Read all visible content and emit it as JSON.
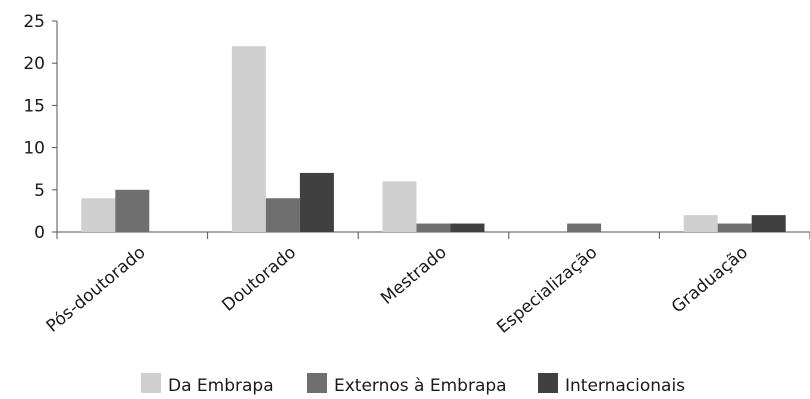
{
  "chart_data": {
    "type": "bar",
    "title": "",
    "xlabel": "",
    "ylabel": "",
    "ylim": [
      0,
      25
    ],
    "yticks": [
      0,
      5,
      10,
      15,
      20,
      25
    ],
    "grid": false,
    "legend_position": "bottom",
    "categories": [
      "Pós-doutorado",
      "Doutorado",
      "Mestrado",
      "Especialização",
      "Graduação"
    ],
    "series": [
      {
        "name": "Da Embrapa",
        "color": "#cfcfcf",
        "values": [
          4,
          22,
          6,
          0,
          2
        ]
      },
      {
        "name": "Externos à Embrapa",
        "color": "#6f6f6f",
        "values": [
          5,
          4,
          1,
          1,
          1
        ]
      },
      {
        "name": "Internacionais",
        "color": "#404040",
        "values": [
          0,
          7,
          1,
          0,
          2
        ]
      }
    ]
  }
}
